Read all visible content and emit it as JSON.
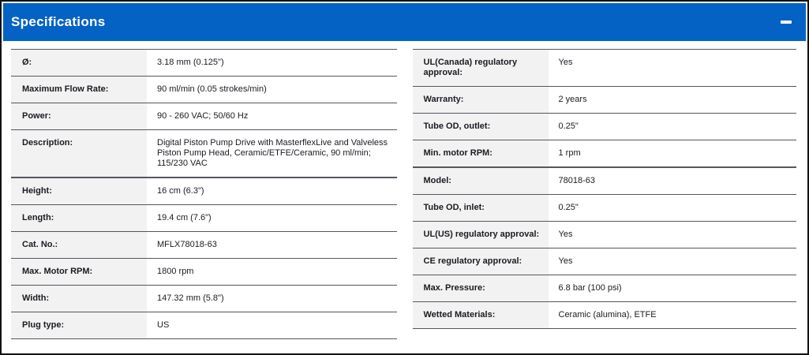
{
  "theme": {
    "header-bg": "#0462C5",
    "header-text": "#FFFFFF",
    "label-bg": "#F2F2F2",
    "row-border": "#55565E",
    "text": "#1A1B22",
    "frame": "#111111"
  },
  "header": {
    "title": "Specifications",
    "collapse_icon": "minus-icon"
  },
  "left_table": {
    "rows": [
      {
        "label": "Ø:",
        "value": "3.18 mm (0.125\")"
      },
      {
        "label": "Maximum Flow Rate:",
        "value": "90 ml/min (0.05 strokes/min)"
      },
      {
        "label": "Power:",
        "value": "90 - 260 VAC; 50/60 Hz"
      },
      {
        "label": "Description:",
        "value": "Digital Piston Pump Drive with MasterflexLive and Valveless Piston Pump Head, Ceramic/ETFE/Ceramic, 90 ml/min; 115/230 VAC",
        "group_end": true
      },
      {
        "label": "Height:",
        "value": "16 cm (6.3\")"
      },
      {
        "label": "Length:",
        "value": "19.4 cm (7.6\")"
      },
      {
        "label": "Cat. No.:",
        "value": "MFLX78018-63"
      },
      {
        "label": "Max. Motor RPM:",
        "value": "1800 rpm"
      },
      {
        "label": "Width:",
        "value": "147.32 mm (5.8\")"
      },
      {
        "label": "Plug type:",
        "value": "US"
      }
    ]
  },
  "right_table": {
    "rows": [
      {
        "label": "UL(Canada) regulatory approval:",
        "value": "Yes"
      },
      {
        "label": "Warranty:",
        "value": "2 years"
      },
      {
        "label": "Tube OD, outlet:",
        "value": "0.25\""
      },
      {
        "label": "Min. motor RPM:",
        "value": "1 rpm",
        "group_end": true
      },
      {
        "label": "Model:",
        "value": "78018-63"
      },
      {
        "label": "Tube OD, inlet:",
        "value": "0.25\""
      },
      {
        "label": "UL(US) regulatory approval:",
        "value": "Yes"
      },
      {
        "label": "CE regulatory approval:",
        "value": "Yes"
      },
      {
        "label": "Max. Pressure:",
        "value": "6.8 bar (100 psi)"
      },
      {
        "label": "Wetted Materials:",
        "value": "Ceramic (alumina), ETFE"
      }
    ]
  }
}
